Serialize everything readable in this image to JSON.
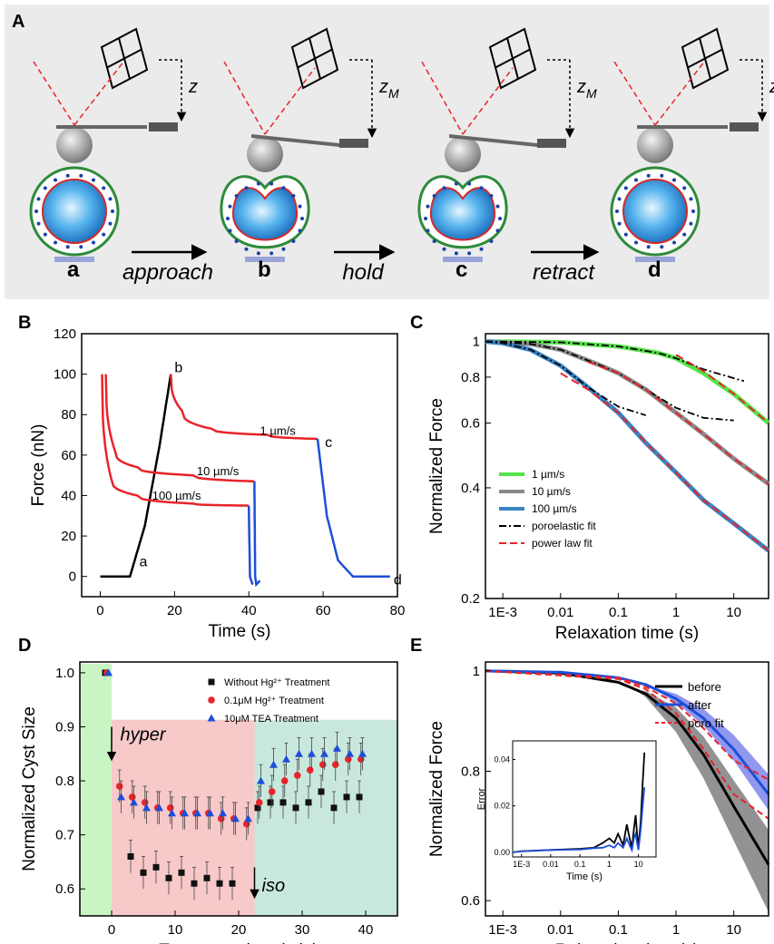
{
  "panel_labels": {
    "A": "A",
    "B": "B",
    "C": "C",
    "D": "D",
    "E": "E"
  },
  "schematic": {
    "stages": [
      "a",
      "b",
      "c",
      "d"
    ],
    "arrows": [
      "approach",
      "hold",
      "retract"
    ],
    "z_labels": [
      "z",
      "z_M",
      "z_M",
      "z"
    ]
  },
  "colors": {
    "red": "#e8232a",
    "black": "#000000",
    "blue": "#1d4ed8",
    "gray": "#8a8a8a",
    "green": "#56e34a",
    "steelblue": "#3a84c4",
    "panelA_bg": "#ebebeb",
    "greenbg": "#c9f5c4",
    "pinkbg": "#f7c9c9",
    "tealbg": "#c9e8dd"
  },
  "chart_data": [
    {
      "panel": "B",
      "type": "line",
      "xlabel": "Time (s)",
      "ylabel": "Force (nN)",
      "xlim": [
        -5,
        80
      ],
      "ylim": [
        -10,
        120
      ],
      "xticks": [
        0,
        20,
        40,
        60,
        80
      ],
      "yticks": [
        0,
        20,
        40,
        60,
        80,
        100,
        120
      ],
      "annotations": [
        "a",
        "b",
        "c",
        "d",
        "1 µm/s",
        "10 µm/s",
        "100 µm/s"
      ],
      "series": [
        {
          "color": "black",
          "x": [
            0,
            8,
            12,
            16,
            19
          ],
          "y": [
            0,
            0,
            25,
            65,
            100
          ]
        },
        {
          "color": "red",
          "x": [
            19,
            22,
            30,
            45,
            58.5
          ],
          "y": [
            100,
            82,
            73,
            70,
            68
          ]
        },
        {
          "color": "blue",
          "x": [
            58.5,
            61,
            64,
            68,
            78
          ],
          "y": [
            68,
            30,
            8,
            0,
            0
          ]
        },
        {
          "color": "red",
          "x": [
            1.5,
            4,
            10,
            25,
            41.5
          ],
          "y": [
            100,
            62,
            54,
            50,
            47
          ]
        },
        {
          "color": "blue",
          "x": [
            41.5,
            41.7,
            42,
            43
          ],
          "y": [
            47,
            0,
            -4,
            -2
          ]
        },
        {
          "color": "red",
          "x": [
            0.5,
            3,
            10,
            25,
            40
          ],
          "y": [
            100,
            48,
            40,
            36,
            35
          ]
        },
        {
          "color": "blue",
          "x": [
            40,
            40.3,
            41
          ],
          "y": [
            35,
            0,
            -4
          ]
        }
      ]
    },
    {
      "panel": "C",
      "type": "line",
      "xlabel": "Relaxation time (s)",
      "ylabel": "Normalized Force",
      "xscale": "log",
      "yscale": "log",
      "xlim": [
        0.0005,
        40
      ],
      "ylim": [
        0.2,
        1.05
      ],
      "xtick_labels": [
        "1E-3",
        "0.01",
        "0.1",
        "1",
        "10"
      ],
      "ytick_labels": [
        "0.2",
        "0.4",
        "0.6",
        "0.8",
        "1"
      ],
      "legend": [
        "1 µm/s",
        "10 µm/s",
        "100 µm/s",
        "poroelastic fit",
        "power law fit"
      ],
      "legend_position": "bottom-left",
      "series": [
        {
          "name": "1 µm/s",
          "x": [
            0.0005,
            0.01,
            0.1,
            0.5,
            1,
            3,
            10,
            40
          ],
          "y": [
            1,
            0.995,
            0.97,
            0.93,
            0.9,
            0.82,
            0.72,
            0.6
          ]
        },
        {
          "name": "10 µm/s",
          "x": [
            0.0005,
            0.003,
            0.01,
            0.05,
            0.1,
            0.3,
            1,
            3,
            10,
            40
          ],
          "y": [
            1,
            0.985,
            0.95,
            0.86,
            0.82,
            0.74,
            0.64,
            0.56,
            0.48,
            0.41
          ]
        },
        {
          "name": "100 µm/s",
          "x": [
            0.0005,
            0.001,
            0.003,
            0.01,
            0.03,
            0.1,
            0.3,
            1,
            3,
            10,
            40
          ],
          "y": [
            1,
            0.99,
            0.95,
            0.86,
            0.75,
            0.64,
            0.53,
            0.44,
            0.37,
            0.32,
            0.27
          ]
        }
      ]
    },
    {
      "panel": "D",
      "type": "scatter",
      "xlabel": "Treatment time (min)",
      "ylabel": "Normalized Cyst Size",
      "xlim": [
        -5,
        45
      ],
      "ylim": [
        0.55,
        1.02
      ],
      "xticks": [
        0,
        10,
        20,
        30,
        40
      ],
      "yticks": [
        0.6,
        0.7,
        0.8,
        0.9,
        1.0
      ],
      "annotations": [
        "hyper",
        "iso"
      ],
      "legend": [
        "Without Hg²⁺ Treatment",
        "0.1μM Hg²⁺ Treatment",
        "10μM TEA Treatment"
      ],
      "legend_position": "top-right",
      "series": [
        {
          "name": "Without Hg²⁺ Treatment",
          "marker": "square",
          "x": [
            -1,
            3,
            5,
            7,
            9,
            11,
            13,
            15,
            17,
            19,
            23,
            25,
            27,
            29,
            31,
            33,
            35,
            37,
            39
          ],
          "y": [
            1.0,
            0.66,
            0.63,
            0.64,
            0.62,
            0.63,
            0.61,
            0.62,
            0.61,
            0.61,
            0.75,
            0.76,
            0.76,
            0.75,
            0.76,
            0.78,
            0.75,
            0.77,
            0.77
          ]
        },
        {
          "name": "0.1μM Hg²⁺ Treatment",
          "marker": "circle",
          "x": [
            -1,
            1,
            3,
            5,
            7,
            9,
            11,
            13,
            15,
            17,
            19,
            21,
            23,
            25,
            27,
            29,
            31,
            33,
            35,
            37,
            39
          ],
          "y": [
            1.0,
            0.79,
            0.77,
            0.76,
            0.75,
            0.75,
            0.74,
            0.74,
            0.74,
            0.73,
            0.73,
            0.72,
            0.76,
            0.78,
            0.8,
            0.81,
            0.82,
            0.83,
            0.83,
            0.84,
            0.84
          ]
        },
        {
          "name": "10μM TEA Treatment",
          "marker": "triangle",
          "x": [
            -1,
            1,
            3,
            5,
            7,
            9,
            11,
            13,
            15,
            17,
            19,
            21,
            23,
            25,
            27,
            29,
            31,
            33,
            35,
            37,
            39
          ],
          "y": [
            1.0,
            0.77,
            0.76,
            0.75,
            0.75,
            0.74,
            0.74,
            0.74,
            0.74,
            0.74,
            0.73,
            0.73,
            0.8,
            0.83,
            0.84,
            0.85,
            0.85,
            0.85,
            0.86,
            0.85,
            0.85
          ]
        }
      ]
    },
    {
      "panel": "E",
      "type": "line",
      "xlabel": "Relaxation time (s)",
      "ylabel": "Normalized Force",
      "xscale": "log",
      "yscale": "log",
      "xlim": [
        0.0005,
        40
      ],
      "ylim": [
        0.58,
        1.02
      ],
      "xtick_labels": [
        "1E-3",
        "0.01",
        "0.1",
        "1",
        "10"
      ],
      "ytick_labels": [
        "0.6",
        "0.8",
        "1"
      ],
      "legend": [
        "before",
        "after",
        "poro fit"
      ],
      "legend_position": "top-right",
      "series": [
        {
          "name": "before",
          "x": [
            0.0005,
            0.01,
            0.1,
            0.3,
            1,
            3,
            10,
            40
          ],
          "y": [
            1,
            0.995,
            0.975,
            0.95,
            0.9,
            0.83,
            0.74,
            0.65
          ]
        },
        {
          "name": "after",
          "x": [
            0.0005,
            0.01,
            0.1,
            0.3,
            1,
            3,
            10,
            40
          ],
          "y": [
            1,
            0.997,
            0.985,
            0.97,
            0.94,
            0.9,
            0.84,
            0.76
          ]
        }
      ],
      "inset": {
        "xlabel": "Time (s)",
        "ylabel": "Error",
        "xtick_labels": [
          "1E-3",
          "0.01",
          "0.1",
          "1",
          "10"
        ],
        "ytick_labels": [
          "0.00",
          "0.02",
          "0.04"
        ],
        "ylim": [
          -0.002,
          0.048
        ]
      }
    }
  ]
}
